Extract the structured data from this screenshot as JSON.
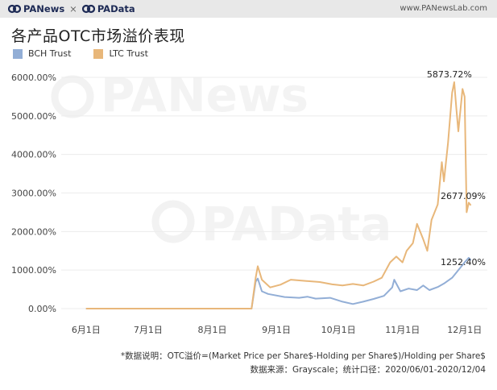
{
  "header": {
    "brand_left": "PANews",
    "brand_sep": "×",
    "brand_right": "PAData",
    "site": "www.PANewsLab.com"
  },
  "colors": {
    "bch": "#92aed6",
    "ltc": "#e8b77a"
  },
  "footnote": {
    "line1": "*数据说明：OTC溢价=(Market Price per Share$-Holding per Share$)/Holding per Share$",
    "line2": "数据来源：Grayscale；统计口径：2020/06/01-2020/12/04"
  },
  "chart_data": {
    "type": "line",
    "title": "各产品OTC市场溢价表现",
    "xlabel": "",
    "ylabel": "",
    "x_range": [
      "2020-06-01",
      "2020-12-04"
    ],
    "ylim": [
      0,
      6000
    ],
    "y_ticks": [
      "0.00%",
      "1000.00%",
      "2000.00%",
      "3000.00%",
      "4000.00%",
      "5000.00%",
      "6000.00%"
    ],
    "x_ticks": [
      "6月1日",
      "7月1日",
      "8月1日",
      "9月1日",
      "10月1日",
      "11月1日",
      "12月1日"
    ],
    "grid": "horizontal",
    "legend_position": "top-left",
    "annotations": [
      {
        "text": "5873.72%",
        "x": "2020-11-26",
        "y": 5873.72
      },
      {
        "text": "2677.09%",
        "x": "2020-12-03",
        "y": 2677.09
      },
      {
        "text": "1252.40%",
        "x": "2020-12-04",
        "y": 1252.4
      }
    ],
    "series": [
      {
        "name": "BCH Trust",
        "points": [
          [
            "2020-06-01",
            0
          ],
          [
            "2020-08-20",
            0
          ],
          [
            "2020-08-22",
            700
          ],
          [
            "2020-08-23",
            780
          ],
          [
            "2020-08-25",
            450
          ],
          [
            "2020-08-28",
            380
          ],
          [
            "2020-09-05",
            300
          ],
          [
            "2020-09-12",
            280
          ],
          [
            "2020-09-16",
            310
          ],
          [
            "2020-09-20",
            260
          ],
          [
            "2020-09-27",
            280
          ],
          [
            "2020-10-03",
            180
          ],
          [
            "2020-10-08",
            120
          ],
          [
            "2020-10-13",
            180
          ],
          [
            "2020-10-18",
            250
          ],
          [
            "2020-10-23",
            330
          ],
          [
            "2020-10-27",
            550
          ],
          [
            "2020-10-28",
            750
          ],
          [
            "2020-10-31",
            450
          ],
          [
            "2020-11-04",
            520
          ],
          [
            "2020-11-08",
            480
          ],
          [
            "2020-11-11",
            600
          ],
          [
            "2020-11-14",
            480
          ],
          [
            "2020-11-18",
            560
          ],
          [
            "2020-11-21",
            650
          ],
          [
            "2020-11-25",
            800
          ],
          [
            "2020-11-28",
            1000
          ],
          [
            "2020-12-01",
            1200
          ],
          [
            "2020-12-03",
            1320
          ],
          [
            "2020-12-04",
            1252.4
          ]
        ]
      },
      {
        "name": "LTC Trust",
        "points": [
          [
            "2020-06-01",
            0
          ],
          [
            "2020-08-20",
            0
          ],
          [
            "2020-08-22",
            800
          ],
          [
            "2020-08-23",
            1100
          ],
          [
            "2020-08-25",
            750
          ],
          [
            "2020-08-29",
            550
          ],
          [
            "2020-09-03",
            620
          ],
          [
            "2020-09-08",
            750
          ],
          [
            "2020-09-15",
            720
          ],
          [
            "2020-09-22",
            690
          ],
          [
            "2020-09-28",
            630
          ],
          [
            "2020-10-03",
            600
          ],
          [
            "2020-10-08",
            640
          ],
          [
            "2020-10-13",
            600
          ],
          [
            "2020-10-18",
            700
          ],
          [
            "2020-10-22",
            800
          ],
          [
            "2020-10-26",
            1200
          ],
          [
            "2020-10-29",
            1350
          ],
          [
            "2020-11-01",
            1200
          ],
          [
            "2020-11-03",
            1500
          ],
          [
            "2020-11-06",
            1700
          ],
          [
            "2020-11-08",
            2200
          ],
          [
            "2020-11-11",
            1800
          ],
          [
            "2020-11-13",
            1500
          ],
          [
            "2020-11-15",
            2300
          ],
          [
            "2020-11-18",
            2700
          ],
          [
            "2020-11-20",
            3800
          ],
          [
            "2020-11-21",
            3300
          ],
          [
            "2020-11-23",
            4300
          ],
          [
            "2020-11-25",
            5600
          ],
          [
            "2020-11-26",
            5873.72
          ],
          [
            "2020-11-27",
            5200
          ],
          [
            "2020-11-28",
            4600
          ],
          [
            "2020-11-30",
            5700
          ],
          [
            "2020-12-01",
            5500
          ],
          [
            "2020-12-02",
            2500
          ],
          [
            "2020-12-03",
            2750
          ],
          [
            "2020-12-04",
            2677.09
          ]
        ]
      }
    ]
  }
}
